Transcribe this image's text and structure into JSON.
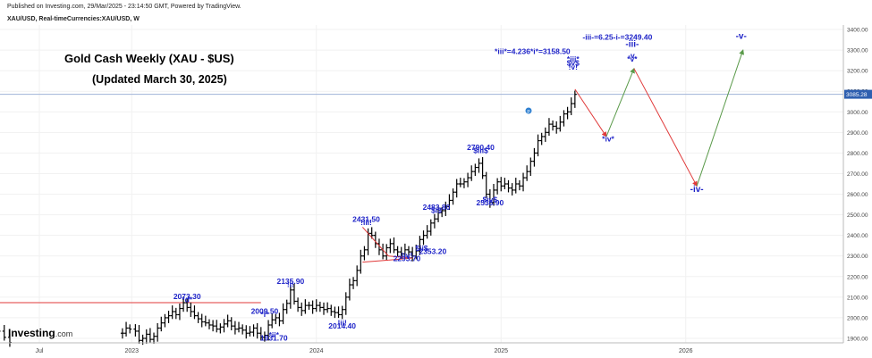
{
  "header": {
    "published": "Published on Investing.com, 29/Mar/2025 - 23:14:50 GMT, Powered by TradingView.",
    "symbol": "XAU/USD, Real-timeCurrencies:XAU/USD, W"
  },
  "title": {
    "line1": "Gold Cash Weekly (XAU - $US)",
    "line2": "(Updated March 30, 2025)"
  },
  "logo": {
    "brand": "Investing",
    "suffix": ".com"
  },
  "colors": {
    "bars": "#000000",
    "annotation": "#1f24c8",
    "projection_up": "#5a9a4a",
    "projection_down": "#e03a3a",
    "current_line": "#9fb3d8",
    "resistance_line": "#e03a3a",
    "price_label_bg": "#2e5fb0"
  },
  "chart_data": {
    "type": "ohlc",
    "title": "Gold Cash Weekly (XAU - $US)",
    "ylim": [
      1880,
      3400
    ],
    "y_ticks": [
      "3400.00",
      "3300.00",
      "3200.00",
      "3100.00",
      "3000.00",
      "2900.00",
      "2800.00",
      "2700.00",
      "2600.00",
      "2500.00",
      "2400.00",
      "2300.00",
      "2200.00",
      "2100.00",
      "2000.00",
      "1900.00"
    ],
    "x_ticks": [
      {
        "label": "Jul",
        "pos": 0.25
      },
      {
        "label": "2023",
        "pos": 0.75
      },
      {
        "label": "2024",
        "pos": 1.75
      },
      {
        "label": "2025",
        "pos": 2.75
      },
      {
        "label": "2026",
        "pos": 3.75
      }
    ],
    "current_price": {
      "value": 3085.28,
      "label": "3085.28"
    },
    "resistance_level": {
      "value": 2073.3,
      "from": 0,
      "to": 1.45
    },
    "weekly_closes": [
      [
        0.0,
        1960
      ],
      [
        0.03,
        1935
      ],
      [
        0.06,
        1905
      ],
      [
        0.09,
        1880
      ],
      [
        0.7,
        1925
      ],
      [
        0.72,
        1950
      ],
      [
        0.74,
        1945
      ],
      [
        0.77,
        1935
      ],
      [
        0.79,
        1890
      ],
      [
        0.81,
        1900
      ],
      [
        0.83,
        1920
      ],
      [
        0.85,
        1895
      ],
      [
        0.87,
        1910
      ],
      [
        0.89,
        1950
      ],
      [
        0.91,
        1975
      ],
      [
        0.93,
        2000
      ],
      [
        0.95,
        2010
      ],
      [
        0.97,
        2030
      ],
      [
        0.99,
        2015
      ],
      [
        1.01,
        2045
      ],
      [
        1.03,
        2073
      ],
      [
        1.05,
        2050
      ],
      [
        1.07,
        2030
      ],
      [
        1.09,
        2010
      ],
      [
        1.11,
        1995
      ],
      [
        1.13,
        1980
      ],
      [
        1.15,
        1975
      ],
      [
        1.17,
        1965
      ],
      [
        1.19,
        1960
      ],
      [
        1.21,
        1945
      ],
      [
        1.23,
        1955
      ],
      [
        1.25,
        1970
      ],
      [
        1.27,
        1985
      ],
      [
        1.29,
        1960
      ],
      [
        1.31,
        1945
      ],
      [
        1.33,
        1950
      ],
      [
        1.35,
        1940
      ],
      [
        1.37,
        1925
      ],
      [
        1.39,
        1930
      ],
      [
        1.41,
        1950
      ],
      [
        1.43,
        1925
      ],
      [
        1.45,
        1905
      ],
      [
        1.47,
        1915
      ],
      [
        1.49,
        1965
      ],
      [
        1.51,
        1990
      ],
      [
        1.53,
        2000
      ],
      [
        1.55,
        1985
      ],
      [
        1.57,
        2040
      ],
      [
        1.59,
        2070
      ],
      [
        1.61,
        2135
      ],
      [
        1.63,
        2080
      ],
      [
        1.65,
        2050
      ],
      [
        1.67,
        2035
      ],
      [
        1.69,
        2060
      ],
      [
        1.71,
        2060
      ],
      [
        1.73,
        2045
      ],
      [
        1.75,
        2060
      ],
      [
        1.77,
        2050
      ],
      [
        1.79,
        2040
      ],
      [
        1.81,
        2045
      ],
      [
        1.83,
        2030
      ],
      [
        1.85,
        2025
      ],
      [
        1.87,
        2015
      ],
      [
        1.89,
        2040
      ],
      [
        1.91,
        2100
      ],
      [
        1.93,
        2160
      ],
      [
        1.95,
        2180
      ],
      [
        1.97,
        2230
      ],
      [
        1.99,
        2300
      ],
      [
        2.01,
        2330
      ],
      [
        2.03,
        2410
      ],
      [
        2.05,
        2400
      ],
      [
        2.07,
        2360
      ],
      [
        2.09,
        2330
      ],
      [
        2.11,
        2300
      ],
      [
        2.13,
        2340
      ],
      [
        2.15,
        2360
      ],
      [
        2.17,
        2330
      ],
      [
        2.19,
        2320
      ],
      [
        2.21,
        2310
      ],
      [
        2.23,
        2330
      ],
      [
        2.25,
        2320
      ],
      [
        2.27,
        2300
      ],
      [
        2.29,
        2325
      ],
      [
        2.31,
        2380
      ],
      [
        2.33,
        2400
      ],
      [
        2.35,
        2420
      ],
      [
        2.37,
        2460
      ],
      [
        2.39,
        2480
      ],
      [
        2.41,
        2510
      ],
      [
        2.43,
        2520
      ],
      [
        2.45,
        2540
      ],
      [
        2.47,
        2570
      ],
      [
        2.49,
        2610
      ],
      [
        2.51,
        2650
      ],
      [
        2.53,
        2650
      ],
      [
        2.55,
        2660
      ],
      [
        2.57,
        2680
      ],
      [
        2.59,
        2710
      ],
      [
        2.61,
        2730
      ],
      [
        2.63,
        2750
      ],
      [
        2.65,
        2690
      ],
      [
        2.67,
        2600
      ],
      [
        2.69,
        2560
      ],
      [
        2.71,
        2620
      ],
      [
        2.73,
        2660
      ],
      [
        2.75,
        2640
      ],
      [
        2.77,
        2650
      ],
      [
        2.79,
        2630
      ],
      [
        2.81,
        2620
      ],
      [
        2.83,
        2650
      ],
      [
        2.85,
        2640
      ],
      [
        2.87,
        2680
      ],
      [
        2.89,
        2710
      ],
      [
        2.91,
        2760
      ],
      [
        2.93,
        2800
      ],
      [
        2.95,
        2860
      ],
      [
        2.97,
        2880
      ],
      [
        2.99,
        2900
      ],
      [
        3.01,
        2940
      ],
      [
        3.03,
        2930
      ],
      [
        3.05,
        2920
      ],
      [
        3.07,
        2950
      ],
      [
        3.09,
        2990
      ],
      [
        3.11,
        3000
      ],
      [
        3.13,
        3040
      ],
      [
        3.15,
        3085
      ]
    ],
    "projection_path": [
      {
        "x": 3.15,
        "y": 3110,
        "leg": "down"
      },
      {
        "x": 3.32,
        "y": 2880,
        "leg": "up"
      },
      {
        "x": 3.47,
        "y": 3210,
        "leg": "down"
      },
      {
        "x": 3.81,
        "y": 2640,
        "leg": "up"
      },
      {
        "x": 4.06,
        "y": 3300,
        "leg": "end"
      }
    ],
    "triangle": [
      [
        2.0,
        2440
      ],
      [
        2.14,
        2300
      ],
      [
        2.27,
        2290
      ],
      [
        2.14,
        2280
      ],
      [
        2.0,
        2270
      ]
    ],
    "annotations": [
      {
        "text": "2073.30",
        "x": 1.05,
        "y": 2090
      },
      {
        "text": "*d*",
        "x": 1.05,
        "y": 2075
      },
      {
        "text": "2009.50",
        "x": 1.47,
        "y": 2020
      },
      {
        "text": "*i*",
        "x": 1.47,
        "y": 2005
      },
      {
        "text": "*ii*",
        "x": 1.52,
        "y": 1905
      },
      {
        "text": "1931.70",
        "x": 1.52,
        "y": 1890
      },
      {
        "text": "2135.90",
        "x": 1.61,
        "y": 2165
      },
      {
        "text": "!i!",
        "x": 1.61,
        "y": 2150
      },
      {
        "text": "!ii!",
        "x": 1.89,
        "y": 1962
      },
      {
        "text": "2014.40",
        "x": 1.89,
        "y": 1947
      },
      {
        "text": "2431.50",
        "x": 2.02,
        "y": 2465
      },
      {
        "text": "!iii!",
        "x": 2.02,
        "y": 2450
      },
      {
        "text": "2483.80",
        "x": 2.4,
        "y": 2525
      },
      {
        "text": "$i$",
        "x": 2.4,
        "y": 2510
      },
      {
        "text": "$ii$",
        "x": 2.32,
        "y": 2325
      },
      {
        "text": "2353.20",
        "x": 2.38,
        "y": 2310
      },
      {
        "text": "!iv!",
        "x": 2.24,
        "y": 2290
      },
      {
        "text": "2293.70",
        "x": 2.24,
        "y": 2275
      },
      {
        "text": "2790.40",
        "x": 2.64,
        "y": 2815
      },
      {
        "text": "$iii$",
        "x": 2.64,
        "y": 2800
      },
      {
        "text": "$iv$",
        "x": 2.69,
        "y": 2562
      },
      {
        "text": "2536.90",
        "x": 2.69,
        "y": 2547
      },
      {
        "text": "*iii*=4.236*i*=3158.50",
        "x": 2.92,
        "y": 3280
      },
      {
        "text": "*iii*",
        "x": 3.14,
        "y": 3245
      },
      {
        "text": "$v$",
        "x": 3.14,
        "y": 3225
      },
      {
        "text": "!v!",
        "x": 3.14,
        "y": 3205
      },
      {
        "text": "*iv*",
        "x": 3.33,
        "y": 2855
      },
      {
        "text": "-iii-=6.25-i-=3249.40",
        "x": 3.38,
        "y": 3350
      },
      {
        "text": "-iii-",
        "x": 3.46,
        "y": 3315,
        "big": true
      },
      {
        "text": "-v.",
        "x": 3.46,
        "y": 3262
      },
      {
        "text": "*v*",
        "x": 3.46,
        "y": 3245
      },
      {
        "text": "-iv-",
        "x": 3.81,
        "y": 2610,
        "big": true
      },
      {
        "text": "-v-",
        "x": 4.05,
        "y": 3355,
        "big": true
      }
    ]
  }
}
